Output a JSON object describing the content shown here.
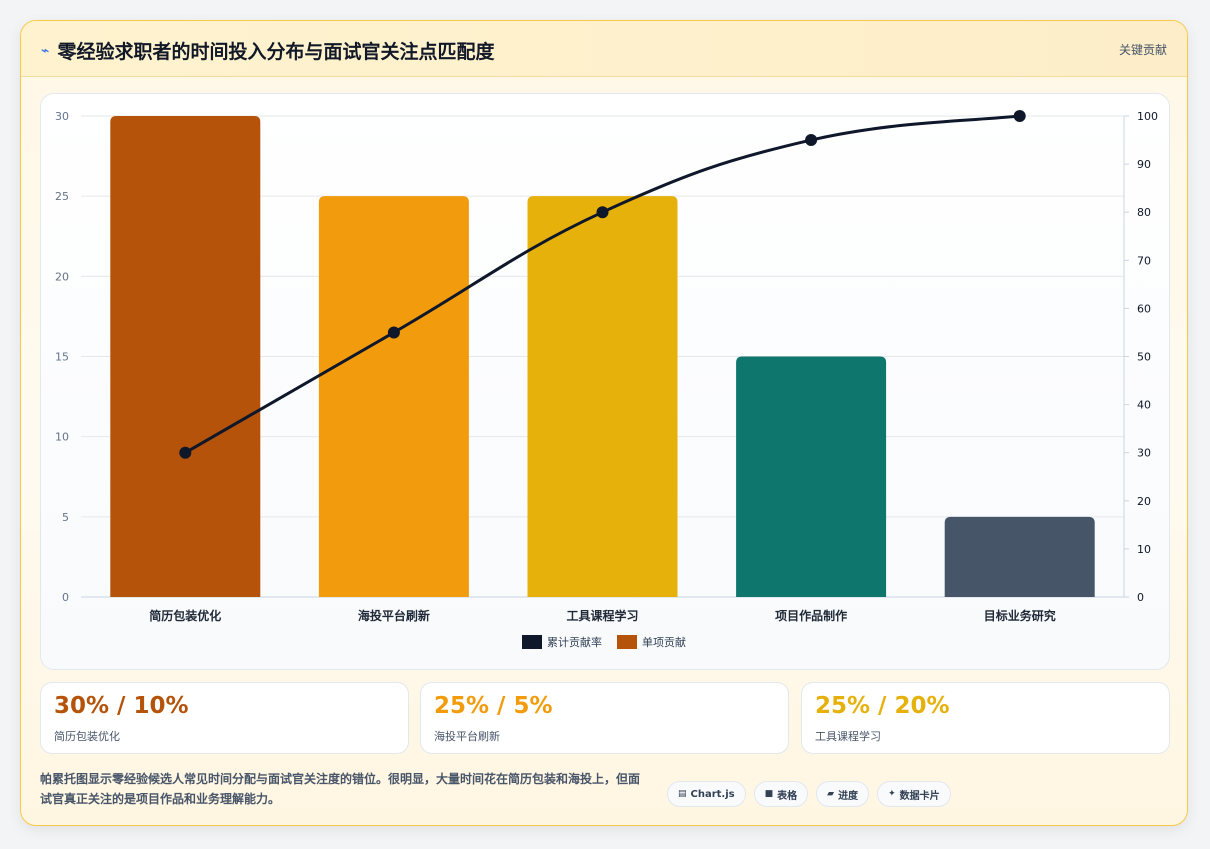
{
  "header": {
    "icon": "lightning-icon",
    "title": "零经验求职者的时间投入分布与面试官关注点匹配度",
    "badge": "关键贡献"
  },
  "chart_data": {
    "type": "bar",
    "categories": [
      "简历包装优化",
      "海投平台刷新",
      "工具课程学习",
      "项目作品制作",
      "目标业务研究"
    ],
    "series": [
      {
        "name": "单项贡献",
        "type": "bar",
        "axis": "left",
        "values": [
          30,
          25,
          25,
          15,
          5
        ],
        "colors": [
          "#b45309",
          "#f29c0d",
          "#e6b10b",
          "#0f766e",
          "#475569"
        ]
      },
      {
        "name": "累计贡献率",
        "type": "line",
        "axis": "right",
        "values": [
          30,
          55,
          80,
          95,
          100
        ],
        "color": "#0f172a"
      }
    ],
    "y_left": {
      "range": [
        0,
        30
      ],
      "ticks": [
        0,
        5,
        10,
        15,
        20,
        25,
        30
      ]
    },
    "y_right": {
      "range": [
        0,
        100
      ],
      "ticks": [
        0,
        10,
        20,
        30,
        40,
        50,
        60,
        70,
        80,
        90,
        100
      ]
    },
    "legend": {
      "placement": "bottom",
      "items": [
        "累计贡献率",
        "单项贡献"
      ]
    },
    "grid": true
  },
  "stats": [
    {
      "value": "30% / 10%",
      "label": "简历包装优化",
      "color": "#b45309"
    },
    {
      "value": "25% / 5%",
      "label": "海投平台刷新",
      "color": "#f29c0d"
    },
    {
      "value": "25% / 20%",
      "label": "工具课程学习",
      "color": "#e6b10b"
    }
  ],
  "footnote": "帕累托图显示零经验候选人常见时间分配与面试官关注度的错位。很明显，大量时间花在简历包装和海投上，但面试官真正关注的是项目作品和业务理解能力。",
  "pills": [
    {
      "icon": "chart-icon",
      "glyph": "▤",
      "label": "Chart.js"
    },
    {
      "icon": "table-icon",
      "glyph": "■",
      "label": "表格"
    },
    {
      "icon": "progress-icon",
      "glyph": "▰",
      "label": "进度"
    },
    {
      "icon": "sparkle-icon",
      "glyph": "✦",
      "label": "数据卡片"
    }
  ]
}
